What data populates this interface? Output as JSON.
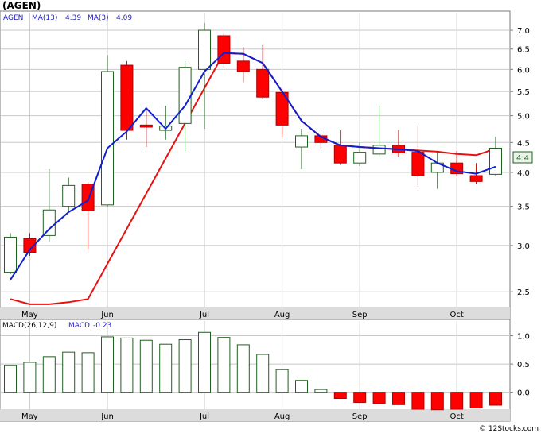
{
  "ticker_title": "(AGEN)",
  "watermark": "© 12Stocks.com",
  "colors": {
    "up_candle": "#ffffff",
    "up_candle_stroke": "#206020",
    "down_candle": "#ff0000",
    "ma13": "#e81010",
    "ma3": "#1020d0",
    "macd_up": "#ffffff",
    "macd_up_stroke": "#206020",
    "macd_down": "#ff0000",
    "grid": "#c8c8c8",
    "axis_strip": "#dcdcdc",
    "last_price_box": "#e8f4e8"
  },
  "chart_data": [
    {
      "type": "candlestick",
      "legend": {
        "symbol": "AGEN",
        "ma13_label": "MA(13)",
        "ma13_value": "4.39",
        "ma3_label": "MA(3)",
        "ma3_value": "4.09"
      },
      "last_price_label": "4.4",
      "y_scale": "log",
      "ylim": [
        2.35,
        7.5
      ],
      "y_ticks": [
        "2.5",
        "3.0",
        "3.5",
        "4.0",
        "4.5",
        "5.0",
        "5.5",
        "6.0",
        "6.5",
        "7.0"
      ],
      "x_labels": [
        "May",
        "Jun",
        "Jul",
        "Aug",
        "Sep",
        "Oct"
      ],
      "x_label_weeks": [
        1,
        5,
        10,
        14,
        18,
        23
      ],
      "grid": true,
      "candles": [
        {
          "o": 2.7,
          "h": 3.15,
          "l": 2.68,
          "c": 3.1
        },
        {
          "o": 3.08,
          "h": 3.15,
          "l": 2.88,
          "c": 2.92
        },
        {
          "o": 3.12,
          "h": 4.05,
          "l": 3.05,
          "c": 3.45
        },
        {
          "o": 3.5,
          "h": 3.92,
          "l": 3.42,
          "c": 3.8
        },
        {
          "o": 3.82,
          "h": 3.85,
          "l": 2.95,
          "c": 3.44
        },
        {
          "o": 3.52,
          "h": 6.35,
          "l": 3.5,
          "c": 5.95
        },
        {
          "o": 6.1,
          "h": 6.2,
          "l": 4.55,
          "c": 4.72
        },
        {
          "o": 4.82,
          "h": 5.12,
          "l": 4.42,
          "c": 4.78
        },
        {
          "o": 4.72,
          "h": 5.2,
          "l": 4.55,
          "c": 4.8
        },
        {
          "o": 4.85,
          "h": 6.2,
          "l": 4.35,
          "c": 6.05
        },
        {
          "o": 6.0,
          "h": 7.2,
          "l": 4.75,
          "c": 7.0
        },
        {
          "o": 6.85,
          "h": 6.95,
          "l": 6.05,
          "c": 6.15
        },
        {
          "o": 6.2,
          "h": 6.55,
          "l": 5.7,
          "c": 5.95
        },
        {
          "o": 6.0,
          "h": 6.6,
          "l": 5.35,
          "c": 5.38
        },
        {
          "o": 5.48,
          "h": 5.55,
          "l": 4.6,
          "c": 4.82
        },
        {
          "o": 4.42,
          "h": 4.75,
          "l": 4.05,
          "c": 4.62
        },
        {
          "o": 4.62,
          "h": 4.68,
          "l": 4.38,
          "c": 4.5
        },
        {
          "o": 4.45,
          "h": 4.72,
          "l": 4.12,
          "c": 4.15
        },
        {
          "o": 4.15,
          "h": 4.5,
          "l": 4.1,
          "c": 4.33
        },
        {
          "o": 4.3,
          "h": 5.2,
          "l": 4.25,
          "c": 4.45
        },
        {
          "o": 4.45,
          "h": 4.72,
          "l": 4.25,
          "c": 4.32
        },
        {
          "o": 4.33,
          "h": 4.8,
          "l": 3.78,
          "c": 3.95
        },
        {
          "o": 4.0,
          "h": 4.35,
          "l": 3.75,
          "c": 4.15
        },
        {
          "o": 4.15,
          "h": 4.35,
          "l": 3.95,
          "c": 3.98
        },
        {
          "o": 3.95,
          "h": 4.15,
          "l": 3.82,
          "c": 3.86
        },
        {
          "o": 3.97,
          "h": 4.6,
          "l": 3.95,
          "c": 4.4
        }
      ],
      "ma13": [
        [
          0,
          2.43
        ],
        [
          1,
          2.38
        ],
        [
          2,
          2.38
        ],
        [
          3,
          2.4
        ],
        [
          4,
          2.43
        ],
        [
          11,
          6.4
        ],
        [
          12,
          6.38
        ],
        [
          13,
          6.15
        ],
        [
          14,
          5.5
        ],
        [
          15,
          4.9
        ],
        [
          16,
          4.6
        ],
        [
          17,
          4.45
        ],
        [
          18,
          4.42
        ],
        [
          19,
          4.4
        ],
        [
          20,
          4.38
        ],
        [
          21,
          4.36
        ],
        [
          22,
          4.34
        ],
        [
          23,
          4.3
        ],
        [
          24,
          4.28
        ],
        [
          25,
          4.39
        ]
      ],
      "ma3": [
        [
          0,
          2.62
        ],
        [
          1,
          2.95
        ],
        [
          2,
          3.2
        ],
        [
          3,
          3.42
        ],
        [
          4,
          3.58
        ],
        [
          5,
          4.4
        ],
        [
          6,
          4.7
        ],
        [
          7,
          5.15
        ],
        [
          8,
          4.75
        ],
        [
          9,
          5.2
        ],
        [
          10,
          5.95
        ],
        [
          11,
          6.4
        ],
        [
          12,
          6.38
        ],
        [
          13,
          6.15
        ],
        [
          14,
          5.5
        ],
        [
          15,
          4.9
        ],
        [
          16,
          4.6
        ],
        [
          17,
          4.45
        ],
        [
          18,
          4.42
        ],
        [
          19,
          4.4
        ],
        [
          20,
          4.38
        ],
        [
          21,
          4.35
        ],
        [
          22,
          4.15
        ],
        [
          23,
          4.02
        ],
        [
          24,
          3.98
        ],
        [
          25,
          4.09
        ]
      ]
    },
    {
      "type": "bar",
      "legend": {
        "label": "MACD(26,12,9)",
        "value_label": "MACD:",
        "value": "-0.23"
      },
      "ylim": [
        -0.3,
        1.12
      ],
      "y_ticks": [
        "0.0",
        "0.5",
        "1.0"
      ],
      "x_labels": [
        "May",
        "Jun",
        "Jul",
        "Aug",
        "Sep",
        "Oct"
      ],
      "x_label_weeks": [
        1,
        5,
        10,
        14,
        18,
        23
      ],
      "values": [
        0.47,
        0.53,
        0.63,
        0.71,
        0.7,
        0.98,
        0.96,
        0.92,
        0.85,
        0.93,
        1.06,
        0.97,
        0.84,
        0.67,
        0.4,
        0.21,
        0.05,
        -0.11,
        -0.18,
        -0.2,
        -0.22,
        -0.3,
        -0.31,
        -0.3,
        -0.28,
        -0.23
      ]
    }
  ]
}
